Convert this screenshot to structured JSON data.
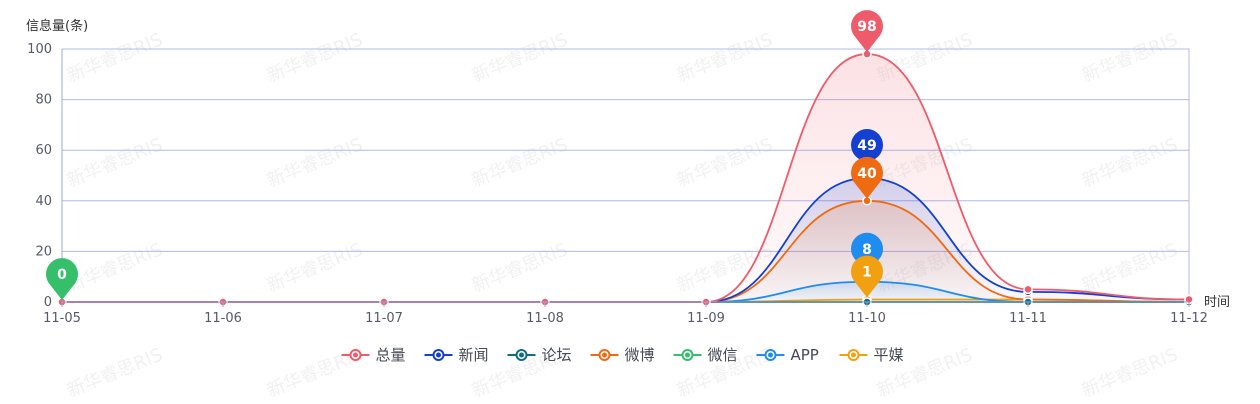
{
  "chart_data": {
    "type": "line",
    "ylabel": "信息量(条)",
    "xlabel": "时间",
    "categories": [
      "11-05",
      "11-06",
      "11-07",
      "11-08",
      "11-09",
      "11-10",
      "11-11",
      "11-12"
    ],
    "ylim": [
      0,
      100
    ],
    "y_ticks": [
      0,
      20,
      40,
      60,
      80,
      100
    ],
    "grid": true,
    "legend_position": "bottom-center",
    "watermark_text": "新华睿思RIS",
    "series": [
      {
        "name": "总量",
        "color": "#ee5b6a",
        "values": [
          0,
          0,
          0,
          0,
          0,
          98,
          5,
          1
        ]
      },
      {
        "name": "新闻",
        "color": "#1340d0",
        "values": [
          0,
          0,
          0,
          0,
          0,
          49,
          4,
          1
        ]
      },
      {
        "name": "论坛",
        "color": "#0b6f85",
        "values": [
          0,
          0,
          0,
          0,
          0,
          0,
          0,
          0
        ]
      },
      {
        "name": "微博",
        "color": "#f06a12",
        "values": [
          0,
          0,
          0,
          0,
          0,
          40,
          1,
          0
        ]
      },
      {
        "name": "微信",
        "color": "#35bf6a",
        "values": [
          0,
          0,
          0,
          0,
          0,
          0,
          0,
          0
        ]
      },
      {
        "name": "APP",
        "color": "#1f8cf0",
        "values": [
          0,
          0,
          0,
          0,
          0,
          8,
          0,
          0
        ]
      },
      {
        "name": "平媒",
        "color": "#f0a010",
        "values": [
          0,
          0,
          0,
          0,
          0,
          1,
          1,
          0
        ]
      }
    ],
    "annotations": [
      {
        "series": "总量",
        "category": "11-10",
        "value": 98,
        "label": "98",
        "shape": "pin"
      },
      {
        "series": "新闻",
        "category": "11-10",
        "value": 49,
        "label": "49",
        "shape": "circle"
      },
      {
        "series": "微博",
        "category": "11-10",
        "value": 40,
        "label": "40",
        "shape": "pin"
      },
      {
        "series": "APP",
        "category": "11-10",
        "value": 8,
        "label": "8",
        "shape": "circle"
      },
      {
        "series": "平媒",
        "category": "11-10",
        "value": 1,
        "label": "1",
        "shape": "pin"
      },
      {
        "series": "微信",
        "category": "11-05",
        "value": 0,
        "label": "0",
        "shape": "pin"
      }
    ]
  }
}
